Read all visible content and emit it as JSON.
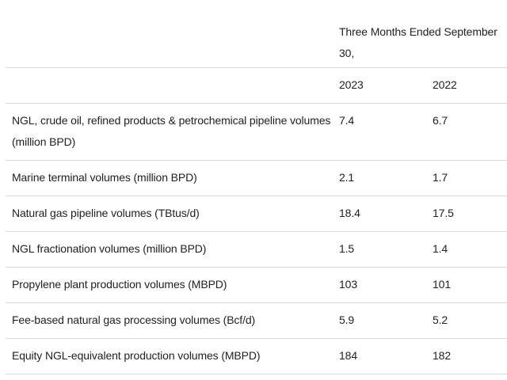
{
  "chart_data": {
    "type": "table",
    "title": "Three Months Ended September 30,",
    "columns": [
      "2023",
      "2022"
    ],
    "rows": [
      {
        "label": "NGL, crude oil, refined products & petrochemical pipeline volumes (million BPD)",
        "values": [
          "7.4",
          "6.7"
        ]
      },
      {
        "label": "Marine terminal volumes (million BPD)",
        "values": [
          "2.1",
          "1.7"
        ]
      },
      {
        "label": "Natural gas pipeline volumes (TBtus/d)",
        "values": [
          "18.4",
          "17.5"
        ]
      },
      {
        "label": "NGL fractionation volumes (million BPD)",
        "values": [
          "1.5",
          "1.4"
        ]
      },
      {
        "label": "Propylene plant production volumes (MBPD)",
        "values": [
          "103",
          "101"
        ]
      },
      {
        "label": "Fee-based natural gas processing volumes (Bcf/d)",
        "values": [
          "5.9",
          "5.2"
        ]
      },
      {
        "label": "Equity NGL-equivalent production volumes (MBPD)",
        "values": [
          "184",
          "182"
        ]
      }
    ],
    "layout": {
      "legend": "none",
      "grid": "horizontal-dividers"
    }
  },
  "colors": {
    "text": "#202124",
    "divider": "#d9d9d9",
    "background": "#ffffff"
  }
}
